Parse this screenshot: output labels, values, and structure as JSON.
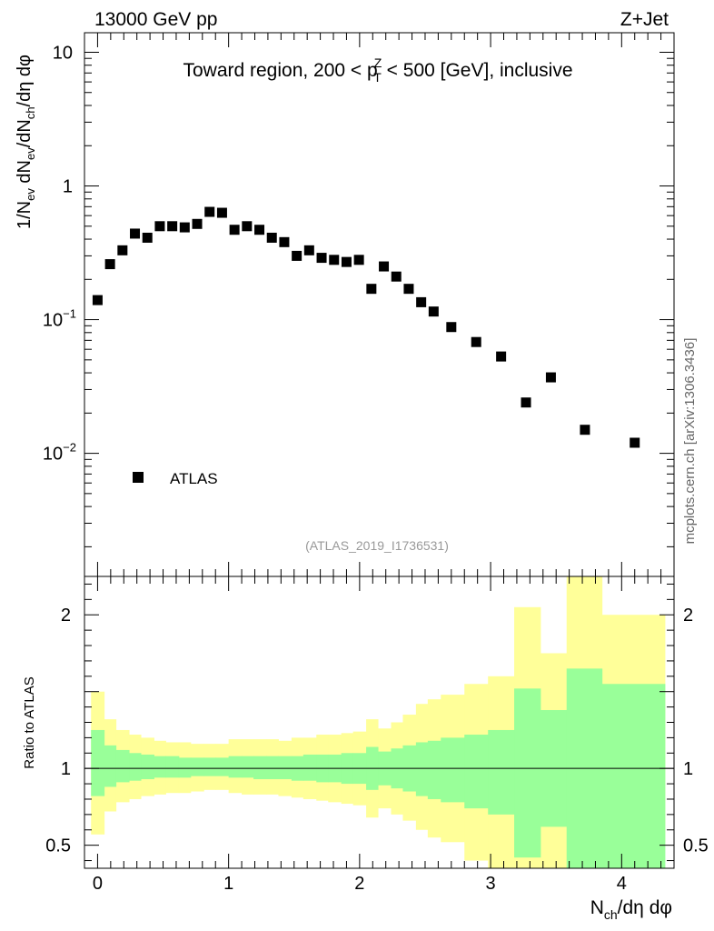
{
  "header": {
    "energy_label": "13000 GeV pp",
    "process_label": "Z+Jet"
  },
  "side_label": "mcplots.cern.ch [arXiv:1306.3436]",
  "chart_data": [
    {
      "type": "scatter",
      "panel": "main",
      "title": "Toward region, 200 < p_T^Z < 500 [GeV], inclusive",
      "ylabel": "1/N_ev dN_ev/dN_ch/dη dφ",
      "yscale": "log",
      "ylim": [
        0.0012,
        14
      ],
      "xlim": [
        -0.1,
        4.4
      ],
      "yticks": [
        {
          "value": 10,
          "label": "10"
        },
        {
          "value": 1,
          "label": "1"
        },
        {
          "value": 0.1,
          "label": "10",
          "exp": "−1"
        },
        {
          "value": 0.01,
          "label": "10",
          "exp": "−2"
        }
      ],
      "legend": {
        "entry": "ATLAS",
        "placement": "bottom-left"
      },
      "watermark": "(ATLAS_2019_I1736531)",
      "series": [
        {
          "name": "ATLAS",
          "x": [
            0.0,
            0.095,
            0.19,
            0.285,
            0.38,
            0.475,
            0.57,
            0.665,
            0.76,
            0.855,
            0.95,
            1.045,
            1.14,
            1.235,
            1.33,
            1.425,
            1.52,
            1.615,
            1.71,
            1.805,
            1.9,
            1.995,
            2.09,
            2.185,
            2.28,
            2.375,
            2.47,
            2.565,
            2.7,
            2.89,
            3.08,
            3.27,
            3.46,
            3.72,
            4.1
          ],
          "y": [
            0.14,
            0.26,
            0.33,
            0.44,
            0.41,
            0.5,
            0.5,
            0.49,
            0.52,
            0.64,
            0.63,
            0.47,
            0.5,
            0.47,
            0.41,
            0.38,
            0.3,
            0.33,
            0.29,
            0.28,
            0.27,
            0.28,
            0.17,
            0.25,
            0.21,
            0.17,
            0.135,
            0.115,
            0.088,
            0.068,
            0.053,
            0.024,
            0.037,
            0.015,
            0.012
          ]
        }
      ]
    },
    {
      "type": "area",
      "panel": "ratio",
      "ylabel": "Ratio to ATLAS",
      "xlabel": "N_ch/dη dφ",
      "ylim": [
        0.35,
        2.25
      ],
      "xlim": [
        -0.1,
        4.4
      ],
      "xticks": [
        0,
        1,
        2,
        3,
        4
      ],
      "yticks": [
        0.5,
        1,
        2
      ],
      "reference_line": 1,
      "bin_edges": [
        -0.05,
        0.05,
        0.14,
        0.24,
        0.33,
        0.43,
        0.52,
        0.62,
        0.71,
        0.81,
        0.9,
        1.0,
        1.1,
        1.19,
        1.29,
        1.38,
        1.48,
        1.57,
        1.67,
        1.76,
        1.86,
        1.95,
        2.05,
        2.14,
        2.24,
        2.33,
        2.43,
        2.52,
        2.62,
        2.8,
        2.98,
        3.18,
        3.38,
        3.58,
        3.85,
        4.33
      ],
      "bands": [
        {
          "name": "total uncertainty",
          "color": "#ffff99",
          "upper": [
            1.5,
            1.32,
            1.25,
            1.22,
            1.2,
            1.18,
            1.17,
            1.17,
            1.16,
            1.16,
            1.16,
            1.19,
            1.19,
            1.19,
            1.19,
            1.18,
            1.2,
            1.2,
            1.22,
            1.22,
            1.23,
            1.24,
            1.32,
            1.26,
            1.3,
            1.35,
            1.42,
            1.45,
            1.48,
            1.55,
            1.6,
            2.05,
            1.75,
            2.25,
            2.0
          ],
          "lower": [
            0.57,
            0.72,
            0.78,
            0.8,
            0.82,
            0.83,
            0.84,
            0.84,
            0.85,
            0.86,
            0.86,
            0.84,
            0.83,
            0.83,
            0.83,
            0.82,
            0.81,
            0.8,
            0.79,
            0.78,
            0.77,
            0.76,
            0.68,
            0.74,
            0.7,
            0.66,
            0.6,
            0.55,
            0.52,
            0.4,
            0.35,
            0.35,
            0.35,
            0.35,
            0.52
          ]
        },
        {
          "name": "statistical uncertainty",
          "color": "#99ff99",
          "upper": [
            1.25,
            1.15,
            1.12,
            1.1,
            1.09,
            1.08,
            1.08,
            1.07,
            1.07,
            1.07,
            1.07,
            1.08,
            1.08,
            1.08,
            1.08,
            1.08,
            1.08,
            1.09,
            1.09,
            1.09,
            1.1,
            1.1,
            1.14,
            1.11,
            1.13,
            1.15,
            1.17,
            1.18,
            1.2,
            1.22,
            1.25,
            1.52,
            1.38,
            1.65,
            1.55
          ],
          "lower": [
            0.82,
            0.88,
            0.91,
            0.92,
            0.93,
            0.94,
            0.94,
            0.94,
            0.95,
            0.95,
            0.95,
            0.94,
            0.94,
            0.93,
            0.93,
            0.93,
            0.92,
            0.92,
            0.91,
            0.91,
            0.9,
            0.9,
            0.86,
            0.89,
            0.87,
            0.85,
            0.82,
            0.8,
            0.78,
            0.74,
            0.7,
            0.42,
            0.62,
            0.35,
            0.35
          ]
        }
      ]
    }
  ]
}
